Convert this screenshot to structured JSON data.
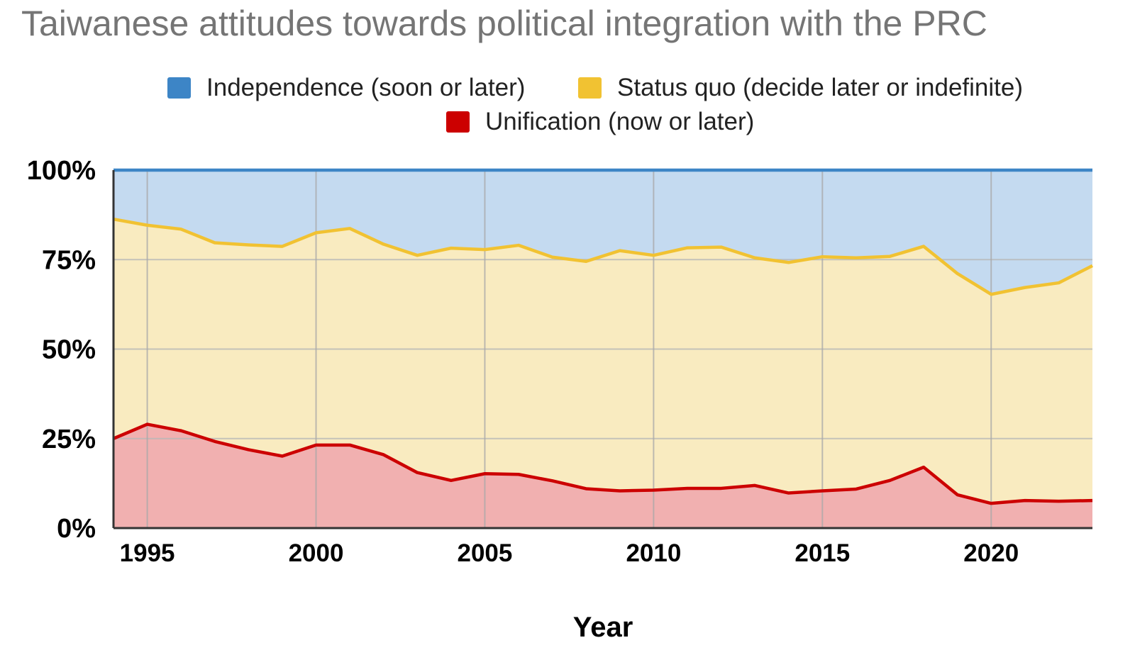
{
  "chart_data": {
    "type": "area",
    "stacked": true,
    "title": "Taiwanese attitudes towards political integration with the PRC",
    "xlabel": "Year",
    "ylabel": "",
    "xlim": [
      1994,
      2023
    ],
    "ylim": [
      0,
      100
    ],
    "x_ticks": [
      1995,
      2000,
      2005,
      2010,
      2015,
      2020
    ],
    "y_ticks": [
      0,
      25,
      50,
      75,
      100
    ],
    "y_tick_labels": [
      "0%",
      "25%",
      "50%",
      "75%",
      "100%"
    ],
    "legend": [
      {
        "name": "Independence (soon or later)",
        "color": "#3d85c6"
      },
      {
        "name": "Status quo (decide later or indefinite)",
        "color": "#f1c232"
      },
      {
        "name": "Unification (now or later)",
        "color": "#cc0000"
      }
    ],
    "x": [
      1994,
      1995,
      1996,
      1997,
      1998,
      1999,
      2000,
      2001,
      2002,
      2003,
      2004,
      2005,
      2006,
      2007,
      2008,
      2009,
      2010,
      2011,
      2012,
      2013,
      2014,
      2015,
      2016,
      2017,
      2018,
      2019,
      2020,
      2021,
      2022,
      2023
    ],
    "series": [
      {
        "name": "Unification (now or later)",
        "color": "#cc0000",
        "fill": "#f1b0b0",
        "values": [
          25.0,
          29.0,
          27.2,
          24.2,
          21.9,
          20.1,
          23.2,
          23.2,
          20.5,
          15.5,
          13.3,
          15.2,
          15.0,
          13.2,
          11.0,
          10.4,
          10.6,
          11.1,
          11.1,
          11.9,
          9.8,
          10.4,
          10.9,
          13.3,
          17.0,
          9.3,
          6.9,
          7.7,
          7.5,
          7.7
        ]
      },
      {
        "name": "Status quo (decide later or indefinite)",
        "color": "#f1c232",
        "fill": "#f9ebc0",
        "values": [
          61.3,
          55.6,
          56.3,
          55.5,
          57.2,
          58.6,
          59.3,
          60.5,
          58.8,
          60.7,
          64.9,
          62.6,
          64.0,
          62.5,
          63.5,
          67.1,
          65.6,
          67.2,
          67.4,
          63.6,
          64.4,
          65.4,
          64.6,
          62.6,
          61.7,
          61.8,
          58.4,
          59.5,
          61.0,
          65.6
        ]
      },
      {
        "name": "Independence (soon or later)",
        "color": "#3d85c6",
        "fill": "#c4daf0",
        "values": [
          13.7,
          15.4,
          16.5,
          20.3,
          20.9,
          21.3,
          17.5,
          16.3,
          20.7,
          23.8,
          21.8,
          22.2,
          21.0,
          24.3,
          25.5,
          22.5,
          23.8,
          21.7,
          21.5,
          24.5,
          25.8,
          24.2,
          24.5,
          24.1,
          21.3,
          28.9,
          34.7,
          32.8,
          31.5,
          26.7
        ]
      }
    ]
  }
}
